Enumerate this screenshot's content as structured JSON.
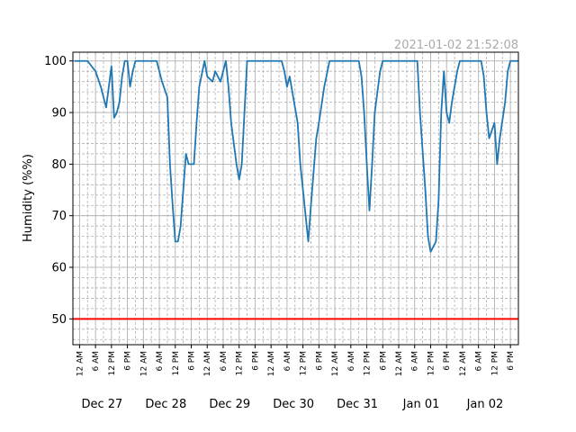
{
  "chart_data": {
    "type": "line",
    "title": "2021-01-02 21:52:08",
    "ylabel": "Humidity (%%)",
    "x": [
      "12-26 22:00",
      "12-27 03:00",
      "12-27 06:00",
      "12-27 08:00",
      "12-27 10:00",
      "12-27 11:00",
      "12-27 12:00",
      "12-27 13:00",
      "12-27 14:00",
      "12-27 15:00",
      "12-27 16:00",
      "12-27 17:00",
      "12-27 18:00",
      "12-27 19:00",
      "12-27 20:00",
      "12-27 21:00",
      "12-28 05:00",
      "12-28 07:00",
      "12-28 09:00",
      "12-28 10:00",
      "12-28 11:00",
      "12-28 12:00",
      "12-28 13:00",
      "12-28 14:00",
      "12-28 15:00",
      "12-28 16:00",
      "12-28 17:00",
      "12-28 19:00",
      "12-28 20:00",
      "12-28 21:00",
      "12-28 23:00",
      "12-29 00:00",
      "12-29 02:00",
      "12-29 03:00",
      "12-29 05:00",
      "12-29 07:00",
      "12-29 08:00",
      "12-29 09:00",
      "12-29 11:00",
      "12-29 12:00",
      "12-29 13:00",
      "12-29 14:00",
      "12-29 15:00",
      "12-30 04:00",
      "12-30 05:00",
      "12-30 06:00",
      "12-30 07:00",
      "12-30 08:00",
      "12-30 10:00",
      "12-30 11:00",
      "12-30 13:00",
      "12-30 14:00",
      "12-30 15:00",
      "12-30 17:00",
      "12-30 18:00",
      "12-30 20:00",
      "12-30 22:00",
      "12-31 09:00",
      "12-31 10:00",
      "12-31 11:00",
      "12-31 12:00",
      "12-31 13:00",
      "12-31 14:00",
      "12-31 15:00",
      "12-31 17:00",
      "12-31 18:00",
      "01-01 07:00",
      "01-01 08:00",
      "01-01 10:00",
      "01-01 11:00",
      "01-01 12:00",
      "01-01 14:00",
      "01-01 15:00",
      "01-01 16:00",
      "01-01 17:00",
      "01-01 18:00",
      "01-01 19:00",
      "01-01 20:00",
      "01-01 22:00",
      "01-01 23:00",
      "01-02 07:00",
      "01-02 08:00",
      "01-02 09:00",
      "01-02 10:00",
      "01-02 12:00",
      "01-02 13:00",
      "01-02 14:00",
      "01-02 16:00",
      "01-02 17:00",
      "01-02 18:00",
      "01-02 21:00"
    ],
    "series": [
      {
        "name": "Humidity",
        "color": "#1f77b4",
        "values": [
          100,
          100,
          98,
          95,
          91,
          95,
          99,
          89,
          90,
          92,
          97,
          100,
          100,
          95,
          98,
          100,
          100,
          96,
          93,
          80,
          72,
          65,
          65,
          68,
          75,
          82,
          80,
          80,
          88,
          95,
          100,
          97,
          96,
          98,
          96,
          100,
          95,
          88,
          80,
          77,
          80,
          90,
          100,
          100,
          98,
          95,
          97,
          94,
          88,
          80,
          70,
          65,
          72,
          85,
          88,
          95,
          100,
          100,
          97,
          90,
          80,
          71,
          80,
          90,
          98,
          100,
          100,
          90,
          75,
          66,
          63,
          65,
          73,
          90,
          98,
          90,
          88,
          92,
          98,
          100,
          100,
          97,
          90,
          85,
          88,
          80,
          85,
          92,
          98,
          100,
          100
        ]
      }
    ],
    "threshold": {
      "value": 50,
      "color": "#ff0000"
    },
    "xlim": [
      "12-26 21:30",
      "01-02 21:00"
    ],
    "ylim": [
      45,
      101.7
    ],
    "yticks": [
      50,
      60,
      70,
      80,
      90,
      100
    ],
    "y_minor_step": 2,
    "x_minor_step_hours": 3,
    "grid": true,
    "xticks": [
      {
        "value": "12-27 00:00",
        "label": "12 AM"
      },
      {
        "value": "12-27 06:00",
        "label": "6 AM"
      },
      {
        "value": "12-27 12:00",
        "label": "12 PM"
      },
      {
        "value": "12-27 18:00",
        "label": "6 PM"
      },
      {
        "value": "12-28 00:00",
        "label": "12 AM"
      },
      {
        "value": "12-28 06:00",
        "label": "6 AM"
      },
      {
        "value": "12-28 12:00",
        "label": "12 PM"
      },
      {
        "value": "12-28 18:00",
        "label": "6 PM"
      },
      {
        "value": "12-29 00:00",
        "label": "12 AM"
      },
      {
        "value": "12-29 06:00",
        "label": "6 AM"
      },
      {
        "value": "12-29 12:00",
        "label": "12 PM"
      },
      {
        "value": "12-29 18:00",
        "label": "6 PM"
      },
      {
        "value": "12-30 00:00",
        "label": "12 AM"
      },
      {
        "value": "12-30 06:00",
        "label": "6 AM"
      },
      {
        "value": "12-30 12:00",
        "label": "12 PM"
      },
      {
        "value": "12-30 18:00",
        "label": "6 PM"
      },
      {
        "value": "12-31 00:00",
        "label": "12 AM"
      },
      {
        "value": "12-31 06:00",
        "label": "6 AM"
      },
      {
        "value": "12-31 12:00",
        "label": "12 PM"
      },
      {
        "value": "12-31 18:00",
        "label": "6 PM"
      },
      {
        "value": "01-01 00:00",
        "label": "12 AM"
      },
      {
        "value": "01-01 06:00",
        "label": "6 AM"
      },
      {
        "value": "01-01 12:00",
        "label": "12 PM"
      },
      {
        "value": "01-01 18:00",
        "label": "6 PM"
      },
      {
        "value": "01-02 00:00",
        "label": "12 AM"
      },
      {
        "value": "01-02 06:00",
        "label": "6 AM"
      },
      {
        "value": "01-02 12:00",
        "label": "12 PM"
      },
      {
        "value": "01-02 18:00",
        "label": "6 PM"
      }
    ],
    "day_labels": [
      {
        "value": "12-27 00:00",
        "label": "Dec 27"
      },
      {
        "value": "12-28 00:00",
        "label": "Dec 28"
      },
      {
        "value": "12-29 00:00",
        "label": "Dec 29"
      },
      {
        "value": "12-30 00:00",
        "label": "Dec 30"
      },
      {
        "value": "12-31 00:00",
        "label": "Dec 31"
      },
      {
        "value": "01-01 00:00",
        "label": "Jan 01"
      },
      {
        "value": "01-02 00:00",
        "label": "Jan 02"
      }
    ]
  }
}
